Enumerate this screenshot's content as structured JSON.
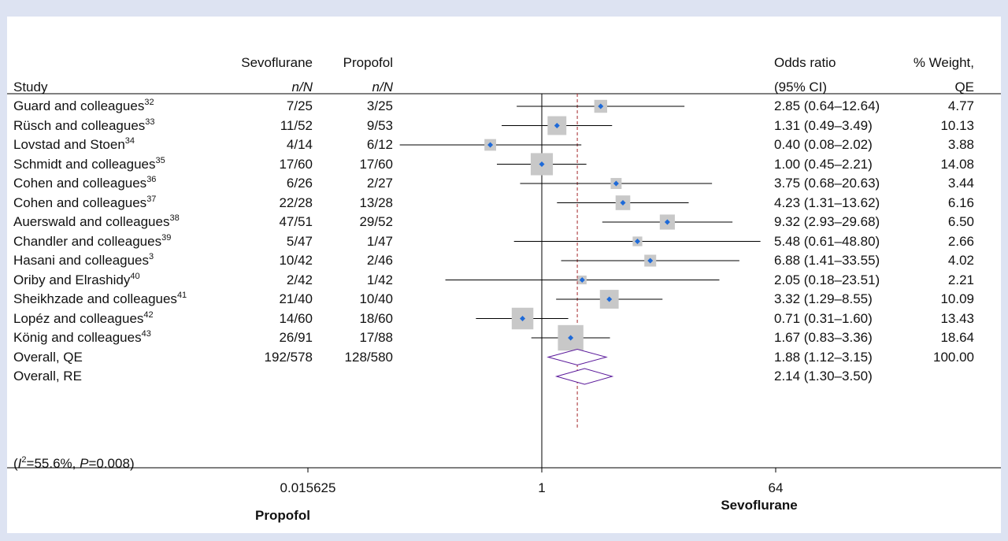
{
  "colors": {
    "background": "#dde3f2",
    "panel": "#ffffff",
    "point": "#1e6ad8",
    "weight_box": "#c8c8c8",
    "diamond": "#5a189a",
    "reference_line": "#a3262a"
  },
  "headers": {
    "sevo": "Sevoflurane",
    "prop": "Propofol",
    "study": "Study",
    "nN_sevo": "n/N",
    "nN_prop": "n/N",
    "or": "Odds ratio",
    "ci": "(95% CI)",
    "weight": "% Weight,",
    "weight_sub": "QE"
  },
  "axis": {
    "tick_labels": [
      "0.015625",
      "1",
      "64"
    ],
    "left_label": "Propofol",
    "right_label": "Sevoflurane"
  },
  "chart_data": {
    "type": "forest",
    "x_scale": "log",
    "x_ticks": [
      0.015625,
      1,
      64
    ],
    "null_line": 1,
    "pooled_line": 1.88,
    "columns": [
      "Study",
      "Sevoflurane n/N",
      "Propofol n/N",
      "Odds ratio (95% CI)",
      "% Weight, QE"
    ],
    "studies": [
      {
        "name": "Guard and colleagues",
        "ref": "32",
        "sevo": "7/25",
        "prop": "3/25",
        "or_text": "2.85 (0.64–12.64)",
        "weight_text": "4.77",
        "or": 2.85,
        "lo": 0.64,
        "hi": 12.64,
        "weight": 4.77
      },
      {
        "name": "Rüsch and colleagues",
        "ref": "33",
        "sevo": "11/52",
        "prop": "9/53",
        "or_text": "1.31 (0.49–3.49)",
        "weight_text": "10.13",
        "or": 1.31,
        "lo": 0.49,
        "hi": 3.49,
        "weight": 10.13
      },
      {
        "name": "Lovstad and Stoen",
        "ref": "34",
        "sevo": "4/14",
        "prop": "6/12",
        "or_text": "0.40 (0.08–2.02)",
        "weight_text": "3.88",
        "or": 0.4,
        "lo": 0.08,
        "hi": 2.02,
        "weight": 3.88
      },
      {
        "name": "Schmidt and colleagues",
        "ref": "35",
        "sevo": "17/60",
        "prop": "17/60",
        "or_text": "1.00 (0.45–2.21)",
        "weight_text": "14.08",
        "or": 1.0,
        "lo": 0.45,
        "hi": 2.21,
        "weight": 14.08
      },
      {
        "name": "Cohen and colleagues",
        "ref": "36",
        "sevo": "6/26",
        "prop": "2/27",
        "or_text": "3.75 (0.68–20.63)",
        "weight_text": "3.44",
        "or": 3.75,
        "lo": 0.68,
        "hi": 20.63,
        "weight": 3.44
      },
      {
        "name": "Cohen and colleagues",
        "ref": "37",
        "sevo": "22/28",
        "prop": "13/28",
        "or_text": "4.23 (1.31–13.62)",
        "weight_text": "6.16",
        "or": 4.23,
        "lo": 1.31,
        "hi": 13.62,
        "weight": 6.16
      },
      {
        "name": "Auerswald and colleagues",
        "ref": "38",
        "sevo": "47/51",
        "prop": "29/52",
        "or_text": "9.32 (2.93–29.68)",
        "weight_text": "6.50",
        "or": 9.32,
        "lo": 2.93,
        "hi": 29.68,
        "weight": 6.5
      },
      {
        "name": "Chandler and colleagues",
        "ref": "39",
        "sevo": "5/47",
        "prop": "1/47",
        "or_text": "5.48 (0.61–48.80)",
        "weight_text": "2.66",
        "or": 5.48,
        "lo": 0.61,
        "hi": 48.8,
        "weight": 2.66
      },
      {
        "name": "Hasani and colleagues",
        "ref": "3",
        "sevo": "10/42",
        "prop": "2/46",
        "or_text": "6.88 (1.41–33.55)",
        "weight_text": "4.02",
        "or": 6.88,
        "lo": 1.41,
        "hi": 33.55,
        "weight": 4.02
      },
      {
        "name": "Oriby and Elrashidy",
        "ref": "40",
        "sevo": "2/42",
        "prop": "1/42",
        "or_text": "2.05 (0.18–23.51)",
        "weight_text": "2.21",
        "or": 2.05,
        "lo": 0.18,
        "hi": 23.51,
        "weight": 2.21
      },
      {
        "name": "Sheikhzade and colleagues",
        "ref": "41",
        "sevo": "21/40",
        "prop": "10/40",
        "or_text": "3.32 (1.29–8.55)",
        "weight_text": "10.09",
        "or": 3.32,
        "lo": 1.29,
        "hi": 8.55,
        "weight": 10.09
      },
      {
        "name": "Lopéz and colleagues",
        "ref": "42",
        "sevo": "14/60",
        "prop": "18/60",
        "or_text": "0.71 (0.31–1.60)",
        "weight_text": "13.43",
        "or": 0.71,
        "lo": 0.31,
        "hi": 1.6,
        "weight": 13.43
      },
      {
        "name": "König and colleagues",
        "ref": "43",
        "sevo": "26/91",
        "prop": "17/88",
        "or_text": "1.67 (0.83–3.36)",
        "weight_text": "18.64",
        "or": 1.67,
        "lo": 0.83,
        "hi": 3.36,
        "weight": 18.64
      }
    ],
    "overall": [
      {
        "name": "Overall, QE",
        "sevo": "192/578",
        "prop": "128/580",
        "or_text": "1.88 (1.12–3.15)",
        "weight_text": "100.00",
        "or": 1.88,
        "lo": 1.12,
        "hi": 3.15
      },
      {
        "name": "Overall, RE",
        "sevo": "",
        "prop": "",
        "or_text": "2.14 (1.30–3.50)",
        "weight_text": "",
        "or": 2.14,
        "lo": 1.3,
        "hi": 3.5
      }
    ],
    "heterogeneity": {
      "i2_label": "I",
      "i2_value": "=55.6%, ",
      "p_label": "P",
      "p_value": "=0.008"
    }
  }
}
